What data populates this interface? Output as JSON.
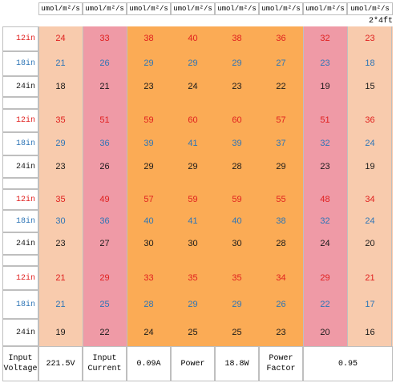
{
  "header": {
    "units": [
      "umol/m²/s",
      "umol/m²/s",
      "umol/m²/s",
      "umol/m²/s",
      "umol/m²/s",
      "umol/m²/s",
      "umol/m²/s",
      "umol/m²/s"
    ],
    "size": "2*4ft"
  },
  "blocks": [
    {
      "rows": [
        {
          "label": "12in",
          "values": [
            24,
            33,
            38,
            40,
            38,
            36,
            32,
            23
          ]
        },
        {
          "label": "18in",
          "values": [
            21,
            26,
            29,
            29,
            29,
            27,
            23,
            18
          ]
        },
        {
          "label": "24in",
          "values": [
            18,
            21,
            23,
            24,
            23,
            22,
            19,
            15
          ]
        }
      ]
    },
    {
      "rows": [
        {
          "label": "12in",
          "values": [
            35,
            51,
            59,
            60,
            60,
            57,
            51,
            36
          ]
        },
        {
          "label": "18in",
          "values": [
            29,
            36,
            39,
            41,
            39,
            37,
            32,
            24
          ]
        },
        {
          "label": "24in",
          "values": [
            23,
            26,
            29,
            29,
            28,
            29,
            23,
            19
          ]
        }
      ]
    },
    {
      "rows": [
        {
          "label": "12in",
          "values": [
            35,
            49,
            57,
            59,
            59,
            55,
            48,
            34
          ]
        },
        {
          "label": "18in",
          "values": [
            30,
            36,
            40,
            41,
            40,
            38,
            32,
            24
          ]
        },
        {
          "label": "24in",
          "values": [
            23,
            27,
            30,
            30,
            30,
            28,
            24,
            20
          ]
        }
      ]
    },
    {
      "rows": [
        {
          "label": "12in",
          "values": [
            21,
            29,
            33,
            35,
            35,
            34,
            29,
            21
          ]
        },
        {
          "label": "18in",
          "values": [
            21,
            25,
            28,
            29,
            29,
            26,
            22,
            17
          ]
        },
        {
          "label": "24in",
          "values": [
            19,
            22,
            24,
            25,
            25,
            23,
            20,
            16
          ]
        }
      ]
    }
  ],
  "footer": [
    "Input Voltage",
    "221.5V",
    "Input Current",
    "0.09A",
    "Power",
    "18.8W",
    "Power Factor",
    "0.95"
  ]
}
